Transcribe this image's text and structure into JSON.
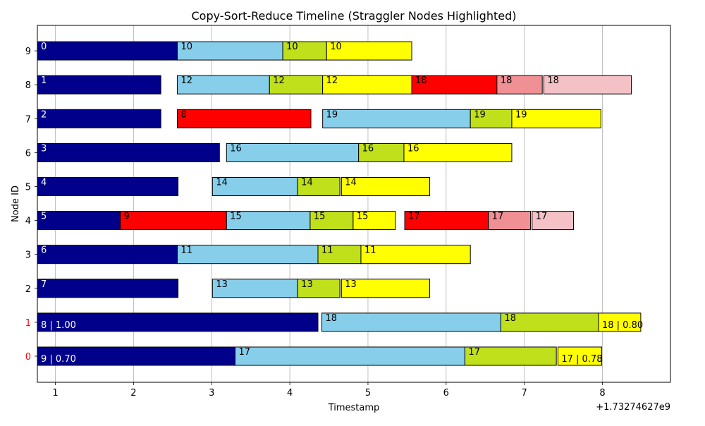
{
  "chart_data": {
    "type": "gantt",
    "title": "Copy-Sort-Reduce Timeline (Straggler Nodes Highlighted)",
    "xlabel": "Timestamp",
    "ylabel": "Node ID",
    "x_offset_label": "+1.73274627e9",
    "xlim": [
      0.77,
      8.87
    ],
    "xticks": [
      1,
      2,
      3,
      4,
      5,
      6,
      7,
      8
    ],
    "grid_x": true,
    "nodes": [
      0,
      1,
      2,
      3,
      4,
      5,
      6,
      7,
      8,
      9
    ],
    "straggler_nodes": [
      0,
      1
    ],
    "colors": {
      "dark": "#00008b",
      "skyblue": "#87ceeb",
      "lime": "#bfe01a",
      "yellow": "#ffff00",
      "red": "#ff0000",
      "pink": "#f08f94",
      "lightpink": "#f4c1c6",
      "straggler_tick": "#ff0000"
    },
    "bars": [
      {
        "node": 9,
        "start": 0.77,
        "end": 2.56,
        "color": "dark",
        "label": "0"
      },
      {
        "node": 9,
        "start": 2.56,
        "end": 3.91,
        "color": "skyblue",
        "label": "10"
      },
      {
        "node": 9,
        "start": 3.91,
        "end": 4.47,
        "color": "lime",
        "label": "10"
      },
      {
        "node": 9,
        "start": 4.47,
        "end": 5.56,
        "color": "yellow",
        "label": "10"
      },
      {
        "node": 8,
        "start": 0.77,
        "end": 2.35,
        "color": "dark",
        "label": "1"
      },
      {
        "node": 8,
        "start": 2.56,
        "end": 3.74,
        "color": "skyblue",
        "label": "12"
      },
      {
        "node": 8,
        "start": 3.74,
        "end": 4.42,
        "color": "lime",
        "label": "12"
      },
      {
        "node": 8,
        "start": 4.42,
        "end": 5.56,
        "color": "yellow",
        "label": "12"
      },
      {
        "node": 8,
        "start": 5.56,
        "end": 6.65,
        "color": "red",
        "label": "18"
      },
      {
        "node": 8,
        "start": 6.65,
        "end": 7.23,
        "color": "pink",
        "label": "18"
      },
      {
        "node": 8,
        "start": 7.25,
        "end": 8.37,
        "color": "lightpink",
        "label": "18"
      },
      {
        "node": 7,
        "start": 0.77,
        "end": 2.35,
        "color": "dark",
        "label": "2"
      },
      {
        "node": 7,
        "start": 2.56,
        "end": 4.27,
        "color": "red",
        "label": "8"
      },
      {
        "node": 7,
        "start": 4.42,
        "end": 6.31,
        "color": "skyblue",
        "label": "19"
      },
      {
        "node": 7,
        "start": 6.31,
        "end": 6.84,
        "color": "lime",
        "label": "19"
      },
      {
        "node": 7,
        "start": 6.84,
        "end": 7.98,
        "color": "yellow",
        "label": "19"
      },
      {
        "node": 6,
        "start": 0.77,
        "end": 3.1,
        "color": "dark",
        "label": "3"
      },
      {
        "node": 6,
        "start": 3.19,
        "end": 4.88,
        "color": "skyblue",
        "label": "16"
      },
      {
        "node": 6,
        "start": 4.88,
        "end": 5.46,
        "color": "lime",
        "label": "16"
      },
      {
        "node": 6,
        "start": 5.46,
        "end": 6.84,
        "color": "yellow",
        "label": "16"
      },
      {
        "node": 5,
        "start": 0.77,
        "end": 2.57,
        "color": "dark",
        "label": "4"
      },
      {
        "node": 5,
        "start": 3.01,
        "end": 4.1,
        "color": "skyblue",
        "label": "14"
      },
      {
        "node": 5,
        "start": 4.1,
        "end": 4.64,
        "color": "lime",
        "label": "14"
      },
      {
        "node": 5,
        "start": 4.66,
        "end": 5.79,
        "color": "yellow",
        "label": "14"
      },
      {
        "node": 4,
        "start": 0.77,
        "end": 1.83,
        "color": "dark",
        "label": "5"
      },
      {
        "node": 4,
        "start": 1.83,
        "end": 3.19,
        "color": "red",
        "label": "9"
      },
      {
        "node": 4,
        "start": 3.19,
        "end": 4.26,
        "color": "skyblue",
        "label": "15"
      },
      {
        "node": 4,
        "start": 4.26,
        "end": 4.81,
        "color": "lime",
        "label": "15"
      },
      {
        "node": 4,
        "start": 4.81,
        "end": 5.35,
        "color": "yellow",
        "label": "15"
      },
      {
        "node": 4,
        "start": 5.47,
        "end": 6.54,
        "color": "red",
        "label": "17"
      },
      {
        "node": 4,
        "start": 6.54,
        "end": 7.08,
        "color": "pink",
        "label": "17"
      },
      {
        "node": 4,
        "start": 7.1,
        "end": 7.63,
        "color": "lightpink",
        "label": "17"
      },
      {
        "node": 3,
        "start": 0.77,
        "end": 2.56,
        "color": "dark",
        "label": "6"
      },
      {
        "node": 3,
        "start": 2.56,
        "end": 4.36,
        "color": "skyblue",
        "label": "11"
      },
      {
        "node": 3,
        "start": 4.36,
        "end": 4.91,
        "color": "lime",
        "label": "11"
      },
      {
        "node": 3,
        "start": 4.91,
        "end": 6.31,
        "color": "yellow",
        "label": "11"
      },
      {
        "node": 2,
        "start": 0.77,
        "end": 2.57,
        "color": "dark",
        "label": "7"
      },
      {
        "node": 2,
        "start": 3.01,
        "end": 4.1,
        "color": "skyblue",
        "label": "13"
      },
      {
        "node": 2,
        "start": 4.1,
        "end": 4.64,
        "color": "lime",
        "label": "13"
      },
      {
        "node": 2,
        "start": 4.66,
        "end": 5.79,
        "color": "yellow",
        "label": "13"
      },
      {
        "node": 1,
        "start": 0.77,
        "end": 4.36,
        "color": "dark",
        "label": "8 | 1.00"
      },
      {
        "node": 1,
        "start": 4.41,
        "end": 6.7,
        "color": "skyblue",
        "label": "18"
      },
      {
        "node": 1,
        "start": 6.7,
        "end": 7.95,
        "color": "lime",
        "label": "18"
      },
      {
        "node": 1,
        "start": 7.95,
        "end": 8.49,
        "color": "yellow",
        "label": "18 | 0.80"
      },
      {
        "node": 0,
        "start": 0.77,
        "end": 3.3,
        "color": "dark",
        "label": "9 | 0.70"
      },
      {
        "node": 0,
        "start": 3.3,
        "end": 6.24,
        "color": "skyblue",
        "label": "17"
      },
      {
        "node": 0,
        "start": 6.24,
        "end": 7.41,
        "color": "lime",
        "label": "17"
      },
      {
        "node": 0,
        "start": 7.43,
        "end": 7.99,
        "color": "yellow",
        "label": "17 | 0.78"
      }
    ]
  }
}
